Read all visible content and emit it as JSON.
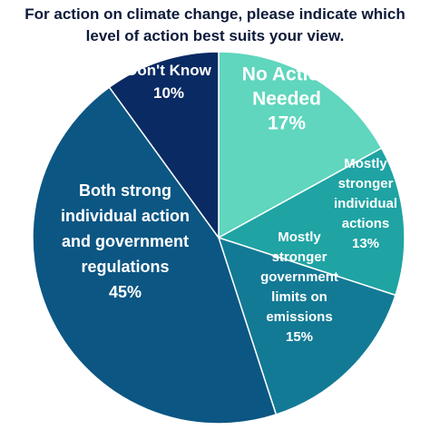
{
  "title_lines": [
    "For action on climate change, please indicate which",
    "level of action best suits your view."
  ],
  "chart_data": {
    "type": "pie",
    "title": "For action on climate change, please indicate which level of action best suits your view.",
    "legend": "none (labels inside slices)",
    "start": "12 o'clock, clockwise",
    "slices": [
      {
        "label": "No Action Needed",
        "label_lines": [
          "No Action",
          "Needed"
        ],
        "value": 17,
        "value_label": "17%",
        "color": "#5fd6bd",
        "text_color": "#ffffff"
      },
      {
        "label": "Mostly stronger individual actions",
        "label_lines": [
          "Mostly",
          "stronger",
          "individual",
          "actions"
        ],
        "value": 13,
        "value_label": "13%",
        "color": "#1fa3a3",
        "text_color": "#ffffff"
      },
      {
        "label": "Mostly stronger government limits on emissions",
        "label_lines": [
          "Mostly",
          "stronger",
          "government",
          "limits on",
          "emissions"
        ],
        "value": 15,
        "value_label": "15%",
        "color": "#137a95",
        "text_color": "#ffffff"
      },
      {
        "label": "Both strong individual action and government regulations",
        "label_lines": [
          "Both strong",
          "individual action",
          "and government",
          "regulations"
        ],
        "value": 45,
        "value_label": "45%",
        "color": "#0b5683",
        "text_color": "#ffffff"
      },
      {
        "label": "Don't Know",
        "label_lines": [
          "Don't Know"
        ],
        "value": 10,
        "value_label": "10%",
        "color": "#0a2a63",
        "text_color": "#ffffff"
      }
    ]
  }
}
